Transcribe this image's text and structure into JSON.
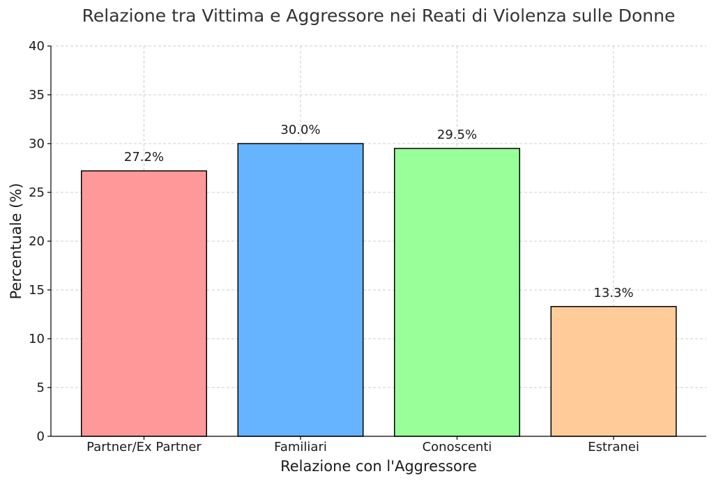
{
  "chart_data": {
    "type": "bar",
    "title": "Relazione tra Vittima e Aggressore nei Reati di Violenza sulle Donne",
    "xlabel": "Relazione con l'Aggressore",
    "ylabel": "Percentuale (%)",
    "categories": [
      "Partner/Ex Partner",
      "Familiari",
      "Conoscenti",
      "Estranei"
    ],
    "values": [
      27.2,
      30.0,
      29.5,
      13.3
    ],
    "value_labels": [
      "27.2%",
      "30.0%",
      "29.5%",
      "13.3%"
    ],
    "colors": [
      "#ff9999",
      "#66b3ff",
      "#99ff99",
      "#ffcc99"
    ],
    "ylim": [
      0,
      40
    ],
    "yticks": [
      0,
      5,
      10,
      15,
      20,
      25,
      30,
      35,
      40
    ],
    "ytick_labels": [
      "0",
      "5",
      "10",
      "15",
      "20",
      "25",
      "30",
      "35",
      "40"
    ],
    "grid": true,
    "legend": false
  }
}
